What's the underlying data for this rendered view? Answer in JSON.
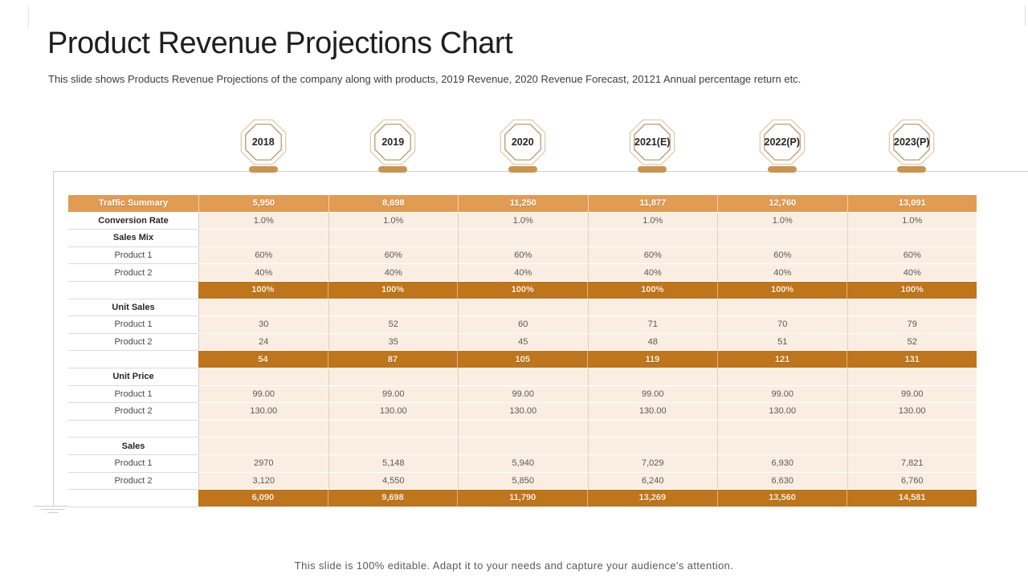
{
  "slide": {
    "title": "Product Revenue Projections Chart",
    "subtitle": "This slide shows Products Revenue Projections of the company along with products, 2019 Revenue,  2020 Revenue Forecast, 20121 Annual percentage return etc.",
    "footer": "This slide is 100% editable. Adapt it to your needs and capture your audience's attention."
  },
  "chart_data": {
    "type": "table",
    "title": "Product Revenue Projections Chart",
    "columns": [
      "",
      "2018",
      "2019",
      "2020",
      "2021(E)",
      "2022(P)",
      "2023(P)"
    ],
    "rows": [
      {
        "label": "Traffic Summary",
        "style": "header",
        "values": [
          "5,950",
          "8,698",
          "11,250",
          "11,877",
          "12,760",
          "13,091"
        ]
      },
      {
        "label": "Conversion Rate",
        "style": "section",
        "values": [
          "1.0%",
          "1.0%",
          "1.0%",
          "1.0%",
          "1.0%",
          "1.0%"
        ]
      },
      {
        "label": "Sales Mix",
        "style": "section",
        "values": [
          "",
          "",
          "",
          "",
          "",
          ""
        ]
      },
      {
        "label": "Product 1",
        "style": "item",
        "values": [
          "60%",
          "60%",
          "60%",
          "60%",
          "60%",
          "60%"
        ]
      },
      {
        "label": "Product 2",
        "style": "item",
        "values": [
          "40%",
          "40%",
          "40%",
          "40%",
          "40%",
          "40%"
        ]
      },
      {
        "label": "",
        "style": "total",
        "values": [
          "100%",
          "100%",
          "100%",
          "100%",
          "100%",
          "100%"
        ]
      },
      {
        "label": "Unit Sales",
        "style": "section",
        "values": [
          "",
          "",
          "",
          "",
          "",
          ""
        ]
      },
      {
        "label": "Product 1",
        "style": "item",
        "values": [
          "30",
          "52",
          "60",
          "71",
          "70",
          "79"
        ]
      },
      {
        "label": "Product 2",
        "style": "item",
        "values": [
          "24",
          "35",
          "45",
          "48",
          "51",
          "52"
        ]
      },
      {
        "label": "",
        "style": "total",
        "values": [
          "54",
          "87",
          "105",
          "119",
          "121",
          "131"
        ]
      },
      {
        "label": "Unit Price",
        "style": "section",
        "values": [
          "",
          "",
          "",
          "",
          "",
          ""
        ]
      },
      {
        "label": "Product 1",
        "style": "item",
        "values": [
          "99.00",
          "99.00",
          "99.00",
          "99.00",
          "99.00",
          "99.00"
        ]
      },
      {
        "label": "Product 2",
        "style": "item",
        "values": [
          "130.00",
          "130.00",
          "130.00",
          "130.00",
          "130.00",
          "130.00"
        ]
      },
      {
        "label": "",
        "style": "spacer",
        "values": [
          "",
          "",
          "",
          "",
          "",
          ""
        ]
      },
      {
        "label": "Sales",
        "style": "section",
        "values": [
          "",
          "",
          "",
          "",
          "",
          ""
        ]
      },
      {
        "label": "Product 1",
        "style": "item",
        "values": [
          "2970",
          "5,148",
          "5,940",
          "7,029",
          "6,930",
          "7,821"
        ]
      },
      {
        "label": "Product 2",
        "style": "item",
        "values": [
          "3,120",
          "4,550",
          "5,850",
          "6,240",
          "6,630",
          "6,760"
        ]
      },
      {
        "label": "",
        "style": "total",
        "values": [
          "6,090",
          "9,698",
          "11,790",
          "13,269",
          "13,560",
          "14,581"
        ]
      }
    ]
  },
  "colors": {
    "header_orange": "#e29b53",
    "total_orange": "#bf751b",
    "cell_bg": "#faeee3",
    "pill": "#cb9350",
    "line": "#cfcfcf",
    "octagon_outer": "#dcc7a8",
    "octagon_inner": "#b98e5e"
  }
}
